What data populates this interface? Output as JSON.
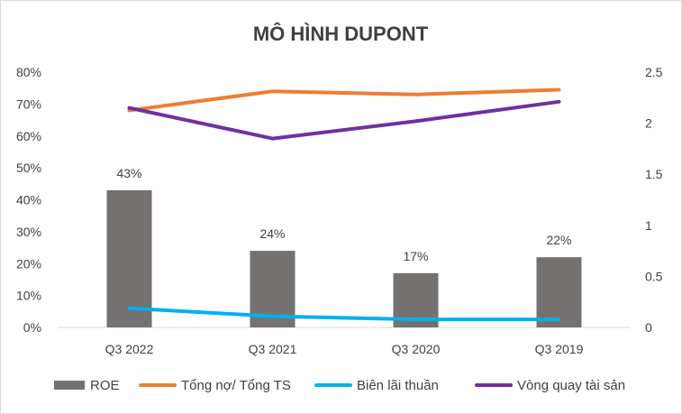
{
  "chart_data": {
    "type": "bar",
    "title": "MÔ HÌNH DUPONT",
    "categories": [
      "Q3 2022",
      "Q3 2021",
      "Q3 2020",
      "Q3 2019"
    ],
    "bar_series": {
      "name": "ROE",
      "values": [
        0.43,
        0.24,
        0.17,
        0.22
      ],
      "labels": [
        "43%",
        "24%",
        "17%",
        "22%"
      ],
      "color": "#767171",
      "axis": "left"
    },
    "line_series": [
      {
        "name": "Tổng nợ/ Tổng TS",
        "values": [
          0.68,
          0.74,
          0.73,
          0.745
        ],
        "color": "#ED7D31",
        "axis": "left"
      },
      {
        "name": "Biên lãi thuần",
        "values": [
          0.06,
          0.035,
          0.025,
          0.025
        ],
        "color": "#00B0F0",
        "axis": "left"
      },
      {
        "name": "Vòng quay tài sản",
        "values": [
          2.15,
          1.85,
          2.02,
          2.21
        ],
        "color": "#7030A0",
        "axis": "right"
      }
    ],
    "y_left": {
      "ylim": [
        0,
        0.8
      ],
      "ticks": [
        0,
        0.1,
        0.2,
        0.3,
        0.4,
        0.5,
        0.6,
        0.7,
        0.8
      ],
      "tick_labels": [
        "0%",
        "10%",
        "20%",
        "30%",
        "40%",
        "50%",
        "60%",
        "70%",
        "80%"
      ]
    },
    "y_right": {
      "ylim": [
        0,
        2.5
      ],
      "ticks": [
        0,
        0.5,
        1,
        1.5,
        2,
        2.5
      ],
      "tick_labels": [
        "0",
        "0.5",
        "1",
        "1.5",
        "2",
        "2.5"
      ]
    },
    "grid": false,
    "legend_position": "bottom"
  }
}
